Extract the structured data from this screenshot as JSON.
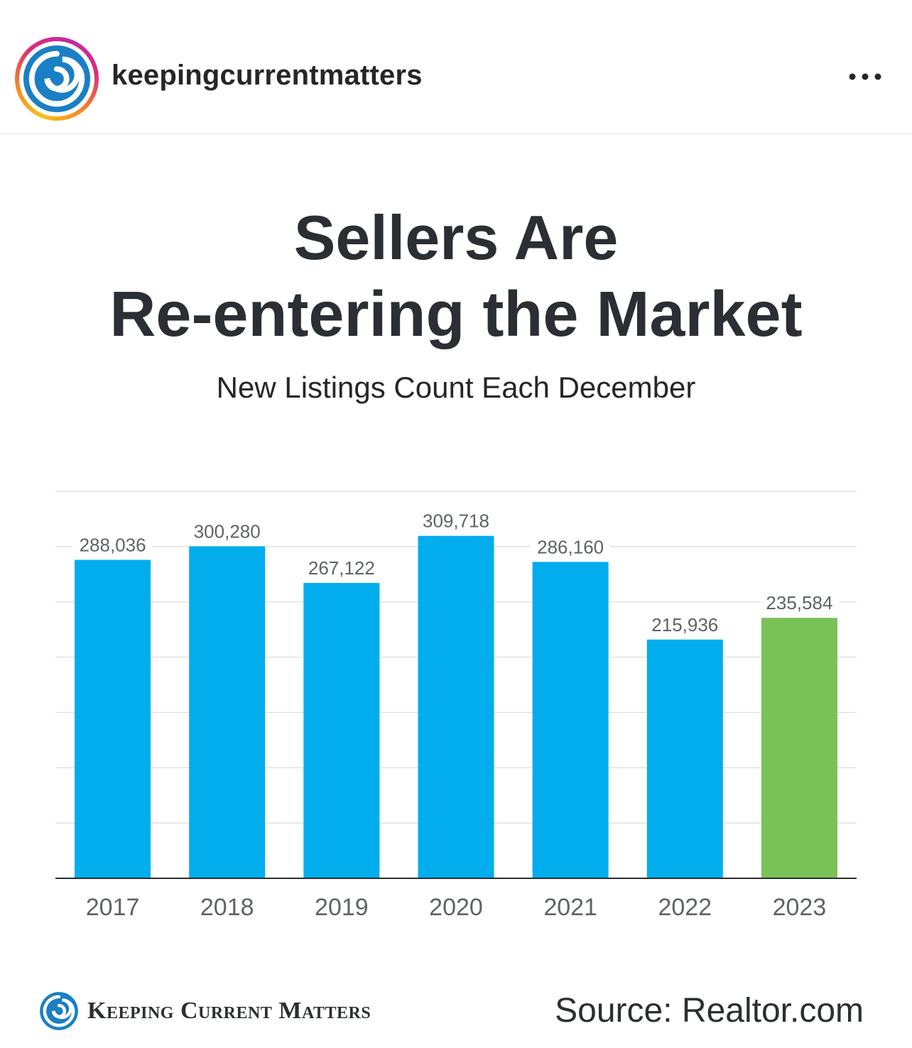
{
  "post": {
    "username": "keepingcurrentmatters",
    "more_icon": "ellipsis-horizontal-icon",
    "avatar_icon": "swirl-logo-icon"
  },
  "graphic": {
    "title_line1": "Sellers Are",
    "title_line2": "Re-entering the Market",
    "subtitle": "New Listings Count Each December",
    "brand": "Keeping Current Matters",
    "source": "Source: Realtor.com"
  },
  "colors": {
    "bar": "#02ADEE",
    "bar_highlight": "#78C257",
    "text": "#2B2F33",
    "label": "#5F6368"
  },
  "chart_data": {
    "type": "bar",
    "categories": [
      "2017",
      "2018",
      "2019",
      "2020",
      "2021",
      "2022",
      "2023"
    ],
    "values": [
      288036,
      300280,
      267122,
      309718,
      286160,
      215936,
      235584
    ],
    "data_labels": [
      "288,036",
      "300,280",
      "267,122",
      "309,718",
      "286,160",
      "215,936",
      "235,584"
    ],
    "highlight_category": "2023",
    "ylim": [
      0,
      350000
    ],
    "grid": true,
    "title": "",
    "xlabel": "",
    "ylabel": ""
  }
}
